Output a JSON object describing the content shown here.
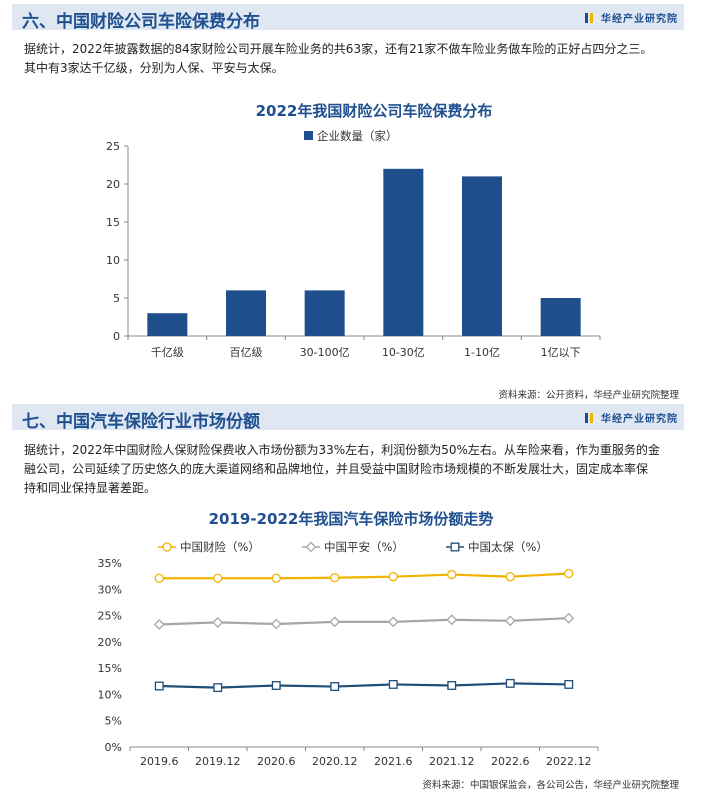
{
  "brand": "华经产业研究院",
  "section6": {
    "title": "六、中国财险公司车险保费分布",
    "paragraph_lines": [
      "据统计，2022年披露数据的84家财险公司开展车险业务的共63家，还有21家不做车险业务做车险的正好占四分之三。",
      "其中有3家达千亿级，分别为人保、平安与太保。"
    ],
    "source": "资料来源：公开资料，华经产业研究院整理"
  },
  "section7": {
    "title": "七、中国汽车保险行业市场份额",
    "paragraph_lines": [
      "据统计，2022年中国财险人保财险保费收入市场份额为33%左右，利润份额为50%左右。从车险来看，作为重服务的金",
      "融公司，公司延续了历史悠久的庞大渠道网络和品牌地位，并且受益中国财险市场规模的不断发展壮大，固定成本率保",
      "持和同业保持显著差距。"
    ],
    "source": "资料来源：中国银保监会，各公司公告，华经产业研究院整理"
  },
  "chart_data": [
    {
      "type": "bar",
      "title": "2022年我国财险公司车险保费分布",
      "categories": [
        "千亿级",
        "百亿级",
        "30-100亿",
        "10-30亿",
        "1-10亿",
        "1亿以下"
      ],
      "series": [
        {
          "name": "企业数量（家）",
          "values": [
            3,
            6,
            6,
            22,
            21,
            5
          ],
          "color": "#1f4e8c"
        }
      ],
      "ylim": [
        0,
        25
      ],
      "yticks": [
        0,
        5,
        10,
        15,
        20,
        25
      ],
      "legend": "top-center",
      "grid": false
    },
    {
      "type": "line",
      "title": "2019-2022年我国汽车保险市场份额走势",
      "categories": [
        "2019.6",
        "2019.12",
        "2020.6",
        "2020.12",
        "2021.6",
        "2021.12",
        "2022.6",
        "2022.12"
      ],
      "series": [
        {
          "name": "中国财险（%）",
          "values": [
            32.1,
            32.1,
            32.1,
            32.2,
            32.4,
            32.8,
            32.4,
            33.0
          ],
          "color": "#f2b300",
          "marker": "circle"
        },
        {
          "name": "中国平安（%）",
          "values": [
            23.3,
            23.7,
            23.4,
            23.8,
            23.8,
            24.2,
            24.0,
            24.5
          ],
          "color": "#a6a6a6",
          "marker": "diamond"
        },
        {
          "name": "中国太保（%）",
          "values": [
            11.6,
            11.3,
            11.7,
            11.5,
            11.9,
            11.7,
            12.1,
            11.9
          ],
          "color": "#1f4e79",
          "marker": "square"
        }
      ],
      "ylim": [
        0,
        35
      ],
      "yticks": [
        "0%",
        "5%",
        "10%",
        "15%",
        "20%",
        "25%",
        "30%",
        "35%"
      ],
      "legend": "top",
      "grid": false
    }
  ]
}
